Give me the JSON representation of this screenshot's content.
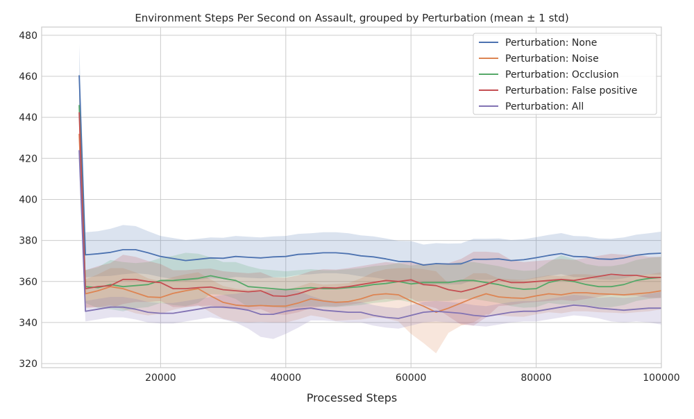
{
  "chart_data": {
    "type": "line",
    "title": "Environment Steps Per Second on Assault, grouped by Perturbation (mean ± 1 std)",
    "xlabel": "Processed Steps",
    "ylabel": "",
    "xlim": [
      1000,
      100000
    ],
    "ylim": [
      318,
      484
    ],
    "xticks": [
      20000,
      40000,
      60000,
      80000,
      100000
    ],
    "xtick_labels": [
      "20000",
      "40000",
      "60000",
      "80000",
      "100000"
    ],
    "yticks": [
      320,
      340,
      360,
      380,
      400,
      420,
      440,
      460,
      480
    ],
    "grid": true,
    "legend_position": "top-right",
    "x": [
      7000,
      8000,
      10000,
      12000,
      14000,
      16000,
      18000,
      20000,
      22000,
      24000,
      26000,
      28000,
      30000,
      32000,
      34000,
      36000,
      38000,
      40000,
      42000,
      44000,
      46000,
      48000,
      50000,
      52000,
      54000,
      56000,
      58000,
      60000,
      62000,
      64000,
      66000,
      68000,
      70000,
      72000,
      74000,
      76000,
      78000,
      80000,
      82000,
      84000,
      86000,
      88000,
      90000,
      92000,
      94000,
      96000,
      98000,
      100000
    ],
    "series": [
      {
        "name": "Perturbation: None",
        "color": "#4c72b0",
        "values": [
          460.5,
          373,
          373.5,
          374.2,
          375.5,
          375.5,
          374,
          372.2,
          371.2,
          370.2,
          370.8,
          371.5,
          371.3,
          372.2,
          371.8,
          371.5,
          372,
          372.2,
          373.2,
          373.5,
          374,
          374,
          373.5,
          372.5,
          372,
          371,
          369.8,
          369.7,
          368,
          368.7,
          368.5,
          368.6,
          370.8,
          370.8,
          371,
          370.2,
          370.6,
          371.6,
          372.7,
          373.6,
          372.2,
          372,
          371,
          370.8,
          371.5,
          372.8,
          373.5,
          373.8
        ],
        "std": [
          15,
          11,
          11,
          11.5,
          12,
          11.5,
          10.5,
          10,
          10,
          10,
          10,
          10,
          10,
          10,
          10,
          10,
          10,
          10,
          10,
          10,
          10,
          10,
          10,
          10,
          10,
          10,
          10,
          10,
          10,
          10,
          10,
          10,
          10,
          10,
          10,
          10,
          10,
          10,
          10,
          10,
          10,
          10,
          10,
          10,
          10,
          10,
          10,
          10.5
        ]
      },
      {
        "name": "Perturbation: Noise",
        "color": "#dd8452",
        "values": [
          432,
          354,
          355.5,
          357.5,
          356.5,
          354.5,
          352.5,
          352.2,
          354.2,
          355.5,
          356.5,
          353,
          349.8,
          348.5,
          348,
          348.3,
          348,
          348,
          349.5,
          351.5,
          350.5,
          349.8,
          350.2,
          351.5,
          353.5,
          354,
          353.5,
          350.5,
          348,
          345,
          347,
          349.5,
          352,
          354,
          352.5,
          352,
          351.8,
          353,
          354,
          353.5,
          354.5,
          354.5,
          354,
          353.8,
          353.5,
          354,
          354.5,
          355.5
        ],
        "std": [
          8,
          7,
          8,
          9,
          10,
          10,
          9,
          8,
          8,
          8,
          8,
          8,
          8,
          8,
          8,
          8,
          8,
          8,
          8,
          8,
          8,
          9,
          9,
          10,
          11,
          12,
          13,
          16,
          18,
          20,
          12,
          11,
          12,
          10,
          9,
          9,
          9,
          9,
          9,
          9,
          9,
          9,
          9,
          9,
          9,
          9,
          9,
          9
        ]
      },
      {
        "name": "Perturbation: Occlusion",
        "color": "#55a868",
        "values": [
          446,
          357.5,
          357,
          358.5,
          357.5,
          358,
          358.5,
          360.5,
          360.5,
          361,
          361.5,
          362.8,
          361.5,
          360.5,
          357.5,
          357,
          356.5,
          356,
          356.5,
          357,
          356.5,
          356.5,
          357,
          357.5,
          358.5,
          359,
          360,
          358.8,
          359.5,
          359.5,
          359.5,
          360.5,
          360.5,
          359.5,
          358.5,
          357,
          356.2,
          356.5,
          359.5,
          360.8,
          360,
          358.5,
          357.5,
          357.5,
          358.5,
          360.5,
          361.5,
          362
        ],
        "std": [
          8,
          8,
          10,
          12,
          12,
          11,
          11,
          11,
          12,
          13,
          12,
          9,
          8,
          9,
          10,
          9,
          9,
          9,
          9,
          9,
          9,
          9,
          9,
          9,
          9,
          9,
          9,
          9,
          9,
          9,
          9,
          9,
          9,
          9,
          9,
          9,
          9,
          9,
          10,
          12,
          11,
          10,
          10,
          10,
          10,
          10,
          10,
          10
        ]
      },
      {
        "name": "Perturbation: False positive",
        "color": "#c44e52",
        "values": [
          442.5,
          356.5,
          357.5,
          358,
          361,
          361,
          360,
          359.5,
          356.5,
          356.5,
          357,
          357.3,
          356,
          355.5,
          355,
          355.5,
          353,
          352.8,
          354,
          356,
          357,
          356.8,
          357.5,
          358.5,
          359.5,
          360.5,
          360,
          360.8,
          358.5,
          358,
          356,
          355,
          356.5,
          358.5,
          361,
          359.5,
          359.5,
          360,
          360.5,
          361,
          360.5,
          361.5,
          362.5,
          363.5,
          363,
          363,
          362,
          362
        ],
        "std": [
          9,
          9,
          10,
          11,
          12,
          11,
          10,
          9,
          9,
          9,
          9,
          9,
          9,
          9,
          9,
          9,
          9,
          9,
          9,
          9,
          9,
          9,
          9,
          9,
          9,
          9,
          9,
          9,
          10,
          11,
          13,
          16,
          18,
          16,
          13,
          11,
          10,
          10,
          10,
          10,
          10,
          10,
          10,
          10,
          10,
          10,
          10,
          10
        ]
      },
      {
        "name": "Perturbation: All",
        "color": "#8172b3",
        "values": [
          424,
          345.5,
          346.5,
          347.5,
          347.5,
          346.5,
          345,
          344.5,
          344.5,
          345.5,
          346.5,
          347.5,
          347.5,
          347,
          346,
          344,
          344,
          345.5,
          346.5,
          347,
          346,
          345.5,
          345,
          345,
          343.5,
          342.5,
          342,
          343.5,
          345,
          345.5,
          345,
          344.5,
          343.5,
          343,
          344,
          345,
          345.5,
          345.5,
          346.5,
          347.5,
          348.5,
          348,
          347,
          346.5,
          346,
          346.5,
          347,
          347
        ],
        "std": [
          6,
          5,
          5,
          5,
          5,
          5,
          5,
          5,
          5,
          5,
          5,
          5,
          6,
          7,
          9,
          11,
          12,
          11,
          9,
          6,
          5,
          5,
          5,
          5,
          5,
          5,
          5,
          5,
          5,
          5,
          5,
          5,
          5,
          5,
          5,
          5,
          5,
          5,
          5,
          5,
          5,
          5,
          5,
          6,
          6,
          6,
          7,
          8
        ]
      }
    ]
  }
}
